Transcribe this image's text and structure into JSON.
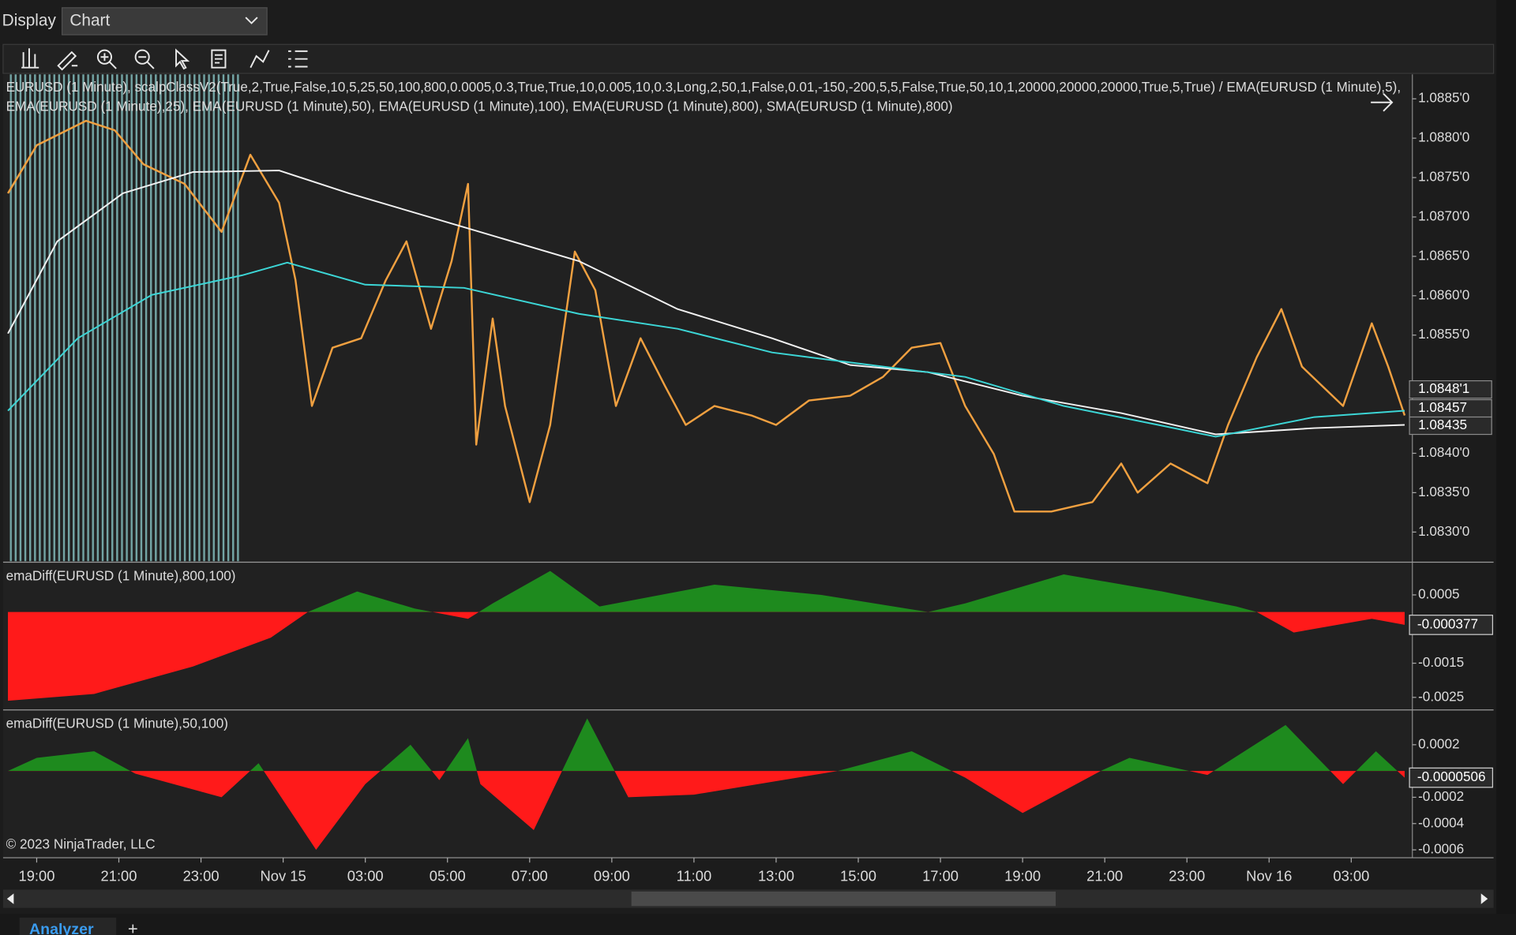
{
  "toolbar": {
    "display_label": "Display",
    "display_value": "Chart"
  },
  "copyright": "© 2023 NinjaTrader, LLC",
  "tabs": {
    "active": "Analyzer",
    "add": "+"
  },
  "chart_data": [
    {
      "type": "line",
      "title": "EURUSD (1 Minute), scalpClassV2(True,2,True,False,10,5,25,50,100,800,0.0005,0.3,True,True,10,0.005,10,0.3,Long,2,50,1,False,0.01,-150,-200,5,5,False,True,50,10,1,20000,20000,20000,True,5,True) / EMA(EURUSD (1 Minute),5),",
      "subtitle": "EMA(EURUSD (1 Minute),25), EMA(EURUSD (1 Minute),50), EMA(EURUSD (1 Minute),100), EMA(EURUSD (1 Minute),800), SMA(EURUSD (1 Minute),800)",
      "xlim": [
        -0.7,
        33.3
      ],
      "ylim": [
        1.08263,
        1.08881
      ],
      "yticks": [
        {
          "value": 1.0885,
          "label": "1.0885'0"
        },
        {
          "value": 1.088,
          "label": "1.0880'0"
        },
        {
          "value": 1.0875,
          "label": "1.0875'0"
        },
        {
          "value": 1.087,
          "label": "1.0870'0"
        },
        {
          "value": 1.0865,
          "label": "1.0865'0"
        },
        {
          "value": 1.086,
          "label": "1.0860'0"
        },
        {
          "value": 1.0855,
          "label": "1.0855'0"
        },
        {
          "value": 1.084,
          "label": "1.0840'0"
        },
        {
          "value": 1.0835,
          "label": "1.0835'0"
        },
        {
          "value": 1.083,
          "label": "1.0830'0"
        }
      ],
      "last_values": [
        {
          "value": 1.08481,
          "label": "1.0848'1"
        },
        {
          "value": 1.08457,
          "label": "1.08457"
        },
        {
          "value": 1.08435,
          "label": "1.08435"
        }
      ],
      "series": [
        {
          "color": "#f0a040",
          "x": [
            -0.7,
            0.0,
            1.2,
            1.9,
            2.6,
            3.6,
            4.5,
            5.2,
            5.9,
            6.3,
            6.7,
            7.2,
            7.9,
            8.5,
            9.0,
            9.6,
            10.1,
            10.5,
            10.7,
            11.1,
            11.4,
            12.0,
            12.5,
            13.1,
            13.6,
            14.1,
            14.7,
            15.3,
            15.8,
            16.5,
            17.4,
            18.0,
            18.8,
            19.8,
            20.6,
            21.3,
            22.0,
            22.6,
            23.3,
            23.8,
            24.7,
            25.7,
            26.4,
            26.8,
            27.6,
            28.5,
            29.0,
            29.7,
            30.3,
            30.8,
            31.8,
            32.5,
            32.9,
            33.3
          ],
          "values": [
            1.0873,
            1.08791,
            1.08822,
            1.0881,
            1.08767,
            1.08742,
            1.08681,
            1.08779,
            1.08718,
            1.0862,
            1.0846,
            1.08534,
            1.08546,
            1.0862,
            1.08669,
            1.08558,
            1.08644,
            1.08742,
            1.08411,
            1.08571,
            1.0846,
            1.08338,
            1.08436,
            1.08656,
            1.08607,
            1.0846,
            1.08546,
            1.08485,
            1.08436,
            1.0846,
            1.08448,
            1.08436,
            1.08467,
            1.08473,
            1.08497,
            1.08534,
            1.0854,
            1.0846,
            1.08399,
            1.08326,
            1.08326,
            1.08338,
            1.08387,
            1.0835,
            1.08387,
            1.08362,
            1.08436,
            1.08522,
            1.08583,
            1.0851,
            1.0846,
            1.08565,
            1.0851,
            1.08448
          ]
        },
        {
          "color": "#f2f2f2",
          "x": [
            -0.7,
            0.5,
            2.1,
            3.8,
            5.9,
            7.6,
            10.4,
            13.2,
            15.6,
            17.9,
            19.8,
            21.7,
            24.0,
            26.4,
            28.7,
            31.1,
            33.3
          ],
          "values": [
            1.08552,
            1.08669,
            1.0873,
            1.08757,
            1.08759,
            1.0873,
            1.08687,
            1.08644,
            1.08583,
            1.08546,
            1.08512,
            1.08503,
            1.08473,
            1.08451,
            1.08424,
            1.08432,
            1.08436
          ]
        },
        {
          "color": "#3cd6d6",
          "x": [
            -0.7,
            1.0,
            2.8,
            5.0,
            6.1,
            8.0,
            10.4,
            13.2,
            15.6,
            17.9,
            20.3,
            22.6,
            25.0,
            27.3,
            28.7,
            31.1,
            33.3
          ],
          "values": [
            1.08454,
            1.08546,
            1.08601,
            1.08626,
            1.08642,
            1.08614,
            1.0861,
            1.08577,
            1.08558,
            1.08528,
            1.08512,
            1.08497,
            1.0846,
            1.08436,
            1.08421,
            1.08446,
            1.08454
          ]
        }
      ]
    },
    {
      "type": "area",
      "title": "emaDiff(EURUSD (1 Minute),800,100)",
      "xlim": [
        -0.7,
        33.3
      ],
      "ylim": [
        -0.00284,
        0.00143
      ],
      "yticks": [
        0.0005,
        -0.0015,
        -0.0025
      ],
      "positive_color": "#1e8a1e",
      "negative_color": "#ff1a1a",
      "series": [
        {
          "x": [
            -0.7,
            1.4,
            3.8,
            5.7,
            6.6,
            7.8,
            9.2,
            10.5,
            11.1,
            12.5,
            13.7,
            16.5,
            19.1,
            21.7,
            22.6,
            25.0,
            27.4,
            29.2,
            29.7,
            30.6,
            32.5,
            33.3
          ],
          "values": [
            -0.0026,
            -0.0024,
            -0.0016,
            -0.00075,
            0,
            0.0006,
            0.0001,
            -0.0002,
            0.00025,
            0.0012,
            0.00016,
            0.0008,
            0.0005,
            0,
            0.00025,
            0.0011,
            0.0006,
            0.00016,
            0,
            -0.0006,
            -0.0002,
            -0.000377
          ],
          "last_value": -0.000377
        }
      ]
    },
    {
      "type": "area",
      "title": "emaDiff(EURUSD (1 Minute),50,100)",
      "xlim": [
        -0.7,
        33.3
      ],
      "ylim": [
        -0.00066,
        0.00045
      ],
      "yticks": [
        0.0002,
        -0.0002,
        -0.0004,
        -0.0006
      ],
      "positive_color": "#1e8a1e",
      "negative_color": "#ff1a1a",
      "xticks": [
        {
          "value": 0,
          "label": "19:00"
        },
        {
          "value": 2,
          "label": "21:00"
        },
        {
          "value": 4,
          "label": "23:00"
        },
        {
          "value": 6,
          "label": "Nov 15"
        },
        {
          "value": 8,
          "label": "03:00"
        },
        {
          "value": 10,
          "label": "05:00"
        },
        {
          "value": 12,
          "label": "07:00"
        },
        {
          "value": 14,
          "label": "09:00"
        },
        {
          "value": 16,
          "label": "11:00"
        },
        {
          "value": 18,
          "label": "13:00"
        },
        {
          "value": 20,
          "label": "15:00"
        },
        {
          "value": 22,
          "label": "17:00"
        },
        {
          "value": 24,
          "label": "19:00"
        },
        {
          "value": 26,
          "label": "21:00"
        },
        {
          "value": 28,
          "label": "23:00"
        },
        {
          "value": 30,
          "label": "Nov 16"
        },
        {
          "value": 32,
          "label": "03:00"
        }
      ],
      "series": [
        {
          "x": [
            -0.7,
            0.0,
            1.4,
            2.4,
            4.5,
            5.4,
            6.8,
            8.0,
            9.1,
            9.8,
            10.5,
            10.8,
            12.1,
            13.4,
            14.4,
            16.0,
            19.5,
            21.3,
            22.6,
            24.0,
            25.9,
            26.6,
            28.5,
            30.4,
            31.8,
            32.6,
            33.3
          ],
          "values": [
            0,
            0.0001,
            0.00015,
            -2e-05,
            -0.0002,
            6e-05,
            -0.0006,
            -0.0001,
            0.0002,
            -7e-05,
            0.00025,
            -0.0001,
            -0.00045,
            0.0004,
            -0.0002,
            -0.00018,
            0,
            0.00015,
            -5e-05,
            -0.00032,
            0,
            0.0001,
            -3e-05,
            0.00035,
            -0.0001,
            0.00015,
            -5.06e-05
          ],
          "last_value": -5.06e-05
        }
      ]
    }
  ]
}
